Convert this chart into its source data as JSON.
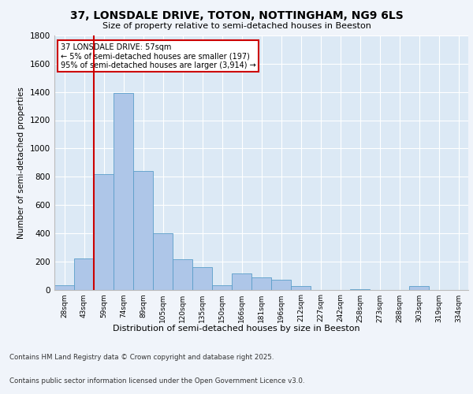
{
  "title_line1": "37, LONSDALE DRIVE, TOTON, NOTTINGHAM, NG9 6LS",
  "title_line2": "Size of property relative to semi-detached houses in Beeston",
  "xlabel": "Distribution of semi-detached houses by size in Beeston",
  "ylabel": "Number of semi-detached properties",
  "categories": [
    "28sqm",
    "43sqm",
    "59sqm",
    "74sqm",
    "89sqm",
    "105sqm",
    "120sqm",
    "135sqm",
    "150sqm",
    "166sqm",
    "181sqm",
    "196sqm",
    "212sqm",
    "227sqm",
    "242sqm",
    "258sqm",
    "273sqm",
    "288sqm",
    "303sqm",
    "319sqm",
    "334sqm"
  ],
  "values": [
    30,
    220,
    820,
    1390,
    840,
    400,
    215,
    160,
    30,
    115,
    85,
    70,
    25,
    0,
    0,
    5,
    0,
    0,
    25,
    0,
    0
  ],
  "bar_color": "#aec6e8",
  "bar_edge_color": "#5a9ec9",
  "highlight_color": "#cc0000",
  "annotation_title": "37 LONSDALE DRIVE: 57sqm",
  "annotation_line1": "← 5% of semi-detached houses are smaller (197)",
  "annotation_line2": "95% of semi-detached houses are larger (3,914) →",
  "annotation_box_color": "#cc0000",
  "ylim": [
    0,
    1800
  ],
  "yticks": [
    0,
    200,
    400,
    600,
    800,
    1000,
    1200,
    1400,
    1600,
    1800
  ],
  "footnote_line1": "Contains HM Land Registry data © Crown copyright and database right 2025.",
  "footnote_line2": "Contains public sector information licensed under the Open Government Licence v3.0.",
  "plot_bg_color": "#dce9f5",
  "fig_bg_color": "#f0f4fa"
}
